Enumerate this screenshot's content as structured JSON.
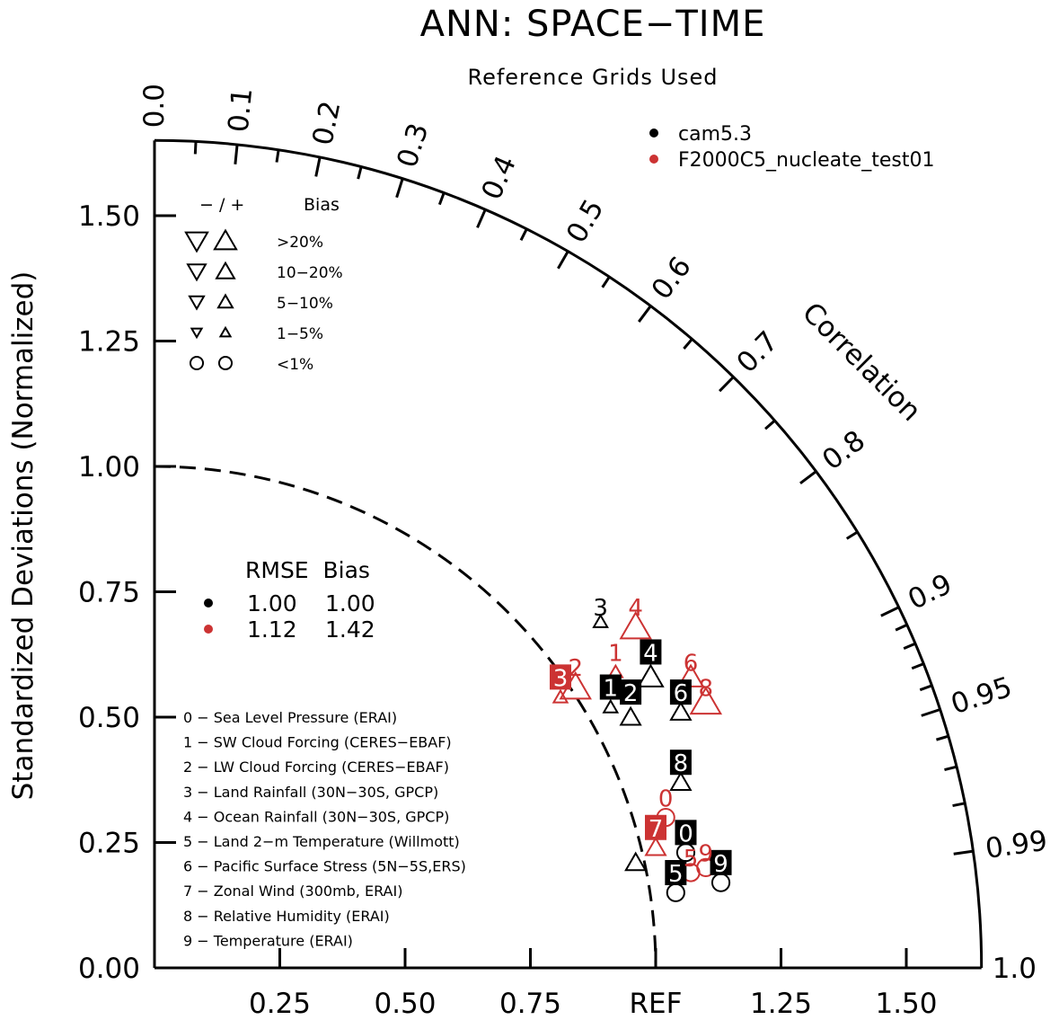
{
  "title": "ANN: SPACE−TIME",
  "subtitle": "Reference Grids Used",
  "ylabel": "Standardized Deviations (Normalized)",
  "corr_label": "Correlation",
  "colors": {
    "black": "#000000",
    "red": "#cc3333"
  },
  "legend_models": [
    {
      "name": "cam5.3",
      "color": "#000000"
    },
    {
      "name": "F2000C5_nucleate_test01",
      "color": "#cc3333"
    }
  ],
  "bias_legend": {
    "header_sign": "− / +",
    "header_bias": "Bias",
    "rows": [
      {
        "label": ">20%",
        "marker": "triangle",
        "size": 1.0
      },
      {
        "label": "10−20%",
        "marker": "triangle",
        "size": 0.82
      },
      {
        "label": "5−10%",
        "marker": "triangle",
        "size": 0.66
      },
      {
        "label": "1−5%",
        "marker": "triangle",
        "size": 0.46
      },
      {
        "label": "<1%",
        "marker": "circle",
        "size": 0.6
      }
    ]
  },
  "rmse_table": {
    "header": "RMSE  Bias",
    "rows": [
      {
        "color": "#000000",
        "rmse": "1.00",
        "bias": "1.00"
      },
      {
        "color": "#cc3333",
        "rmse": "1.12",
        "bias": "1.42"
      }
    ]
  },
  "variables": [
    "0 − Sea Level Pressure (ERAI)",
    "1 − SW Cloud Forcing (CERES−EBAF)",
    "2 − LW Cloud Forcing (CERES−EBAF)",
    "3 − Land Rainfall (30N−30S, GPCP)",
    "4 − Ocean Rainfall (30N−30S, GPCP)",
    "5 − Land 2−m Temperature (Willmott)",
    "6 − Pacific Surface Stress (5N−5S,ERS)",
    "7 − Zonal Wind (300mb, ERAI)",
    "8 − Relative Humidity (ERAI)",
    "9 − Temperature (ERAI)"
  ],
  "chart_data": {
    "type": "scatter",
    "subtype": "taylor-diagram",
    "std_max": 1.65,
    "std_ticks": [
      {
        "v": 0.0,
        "label": "0.00"
      },
      {
        "v": 0.25,
        "label": "0.25"
      },
      {
        "v": 0.5,
        "label": "0.50"
      },
      {
        "v": 0.75,
        "label": "0.75"
      },
      {
        "v": 1.0,
        "label": "1.00"
      },
      {
        "v": 1.25,
        "label": "1.25"
      },
      {
        "v": 1.5,
        "label": "1.50"
      }
    ],
    "x_ticks": [
      {
        "v": 0.25,
        "label": "0.25"
      },
      {
        "v": 0.5,
        "label": "0.50"
      },
      {
        "v": 0.75,
        "label": "0.75"
      },
      {
        "v": 1.0,
        "label": "REF"
      },
      {
        "v": 1.25,
        "label": "1.25"
      },
      {
        "v": 1.5,
        "label": "1.50"
      }
    ],
    "corr_labels": [
      {
        "v": 0.0,
        "label": "0.0"
      },
      {
        "v": 0.1,
        "label": "0.1"
      },
      {
        "v": 0.2,
        "label": "0.2"
      },
      {
        "v": 0.3,
        "label": "0.3"
      },
      {
        "v": 0.4,
        "label": "0.4"
      },
      {
        "v": 0.5,
        "label": "0.5"
      },
      {
        "v": 0.6,
        "label": "0.6"
      },
      {
        "v": 0.7,
        "label": "0.7"
      },
      {
        "v": 0.8,
        "label": "0.8"
      },
      {
        "v": 0.9,
        "label": "0.9"
      },
      {
        "v": 0.95,
        "label": "0.95"
      },
      {
        "v": 0.99,
        "label": "0.99"
      },
      {
        "v": 1.0,
        "label": "1.0"
      }
    ],
    "corr_minor_ticks": [
      0.05,
      0.15,
      0.25,
      0.35,
      0.45,
      0.55,
      0.65,
      0.75,
      0.85,
      0.91,
      0.92,
      0.93,
      0.94,
      0.96,
      0.97,
      0.98
    ],
    "reference_arc": 1.0,
    "series": [
      {
        "name": "cam5.3",
        "color": "#000000",
        "points": [
          {
            "id": "0",
            "x": 1.06,
            "y": 0.23,
            "marker": "circle",
            "size": 0.6
          },
          {
            "id": "1",
            "x": 0.91,
            "y": 0.52,
            "marker": "triangle",
            "size": 0.46
          },
          {
            "id": "2",
            "x": 0.95,
            "y": 0.5,
            "marker": "triangle",
            "size": 0.66
          },
          {
            "id": "3",
            "x": 0.89,
            "y": 0.69,
            "marker": "triangle",
            "size": 0.46
          },
          {
            "id": "4",
            "x": 0.99,
            "y": 0.58,
            "marker": "triangle",
            "size": 0.82
          },
          {
            "id": "5",
            "x": 1.04,
            "y": 0.15,
            "marker": "circle",
            "size": 0.6
          },
          {
            "id": "6",
            "x": 1.05,
            "y": 0.51,
            "marker": "triangle",
            "size": 0.66
          },
          {
            "id": "7",
            "x": 0.96,
            "y": 0.21,
            "marker": "triangle",
            "size": 0.66
          },
          {
            "id": "8",
            "x": 1.05,
            "y": 0.37,
            "marker": "triangle",
            "size": 0.66
          },
          {
            "id": "9",
            "x": 1.13,
            "y": 0.17,
            "marker": "circle",
            "size": 0.6
          }
        ]
      },
      {
        "name": "F2000C5_nucleate_test01",
        "color": "#cc3333",
        "points": [
          {
            "id": "0",
            "x": 1.02,
            "y": 0.3,
            "marker": "circle",
            "size": 0.6
          },
          {
            "id": "1",
            "x": 0.92,
            "y": 0.59,
            "marker": "triangle",
            "size": 0.46
          },
          {
            "id": "2",
            "x": 0.84,
            "y": 0.56,
            "marker": "triangle",
            "size": 1.0
          },
          {
            "id": "3",
            "x": 0.81,
            "y": 0.54,
            "marker": "triangle",
            "size": 0.46
          },
          {
            "id": "4",
            "x": 0.96,
            "y": 0.68,
            "marker": "triangle",
            "size": 1.0
          },
          {
            "id": "5",
            "x": 1.07,
            "y": 0.19,
            "marker": "circle",
            "size": 0.6
          },
          {
            "id": "6",
            "x": 1.07,
            "y": 0.58,
            "marker": "triangle",
            "size": 0.82
          },
          {
            "id": "7",
            "x": 1.0,
            "y": 0.24,
            "marker": "triangle",
            "size": 0.66
          },
          {
            "id": "8",
            "x": 1.1,
            "y": 0.53,
            "marker": "triangle",
            "size": 1.0
          },
          {
            "id": "9",
            "x": 1.1,
            "y": 0.2,
            "marker": "circle",
            "size": 0.6
          }
        ]
      }
    ],
    "point_labels": [
      {
        "series": 0,
        "id": "0",
        "x": 1.06,
        "y": 0.27,
        "boxed": true
      },
      {
        "series": 0,
        "id": "1",
        "x": 0.91,
        "y": 0.56,
        "boxed": true
      },
      {
        "series": 0,
        "id": "2",
        "x": 0.95,
        "y": 0.55,
        "boxed": true
      },
      {
        "series": 0,
        "id": "3",
        "x": 0.89,
        "y": 0.72,
        "boxed": false
      },
      {
        "series": 0,
        "id": "4",
        "x": 0.99,
        "y": 0.63,
        "boxed": true
      },
      {
        "series": 0,
        "id": "5",
        "x": 1.04,
        "y": 0.19,
        "boxed": true
      },
      {
        "series": 0,
        "id": "6",
        "x": 1.05,
        "y": 0.55,
        "boxed": true
      },
      {
        "series": 0,
        "id": "8",
        "x": 1.05,
        "y": 0.41,
        "boxed": true
      },
      {
        "series": 0,
        "id": "9",
        "x": 1.13,
        "y": 0.21,
        "boxed": true
      },
      {
        "series": 1,
        "id": "0",
        "x": 1.02,
        "y": 0.34,
        "boxed": false
      },
      {
        "series": 1,
        "id": "1",
        "x": 0.92,
        "y": 0.63,
        "boxed": false
      },
      {
        "series": 1,
        "id": "2",
        "x": 0.84,
        "y": 0.6,
        "boxed": false
      },
      {
        "series": 1,
        "id": "3",
        "x": 0.81,
        "y": 0.58,
        "boxed": true
      },
      {
        "series": 1,
        "id": "4",
        "x": 0.96,
        "y": 0.72,
        "boxed": false
      },
      {
        "series": 1,
        "id": "5",
        "x": 1.07,
        "y": 0.22,
        "boxed": false
      },
      {
        "series": 1,
        "id": "6",
        "x": 1.07,
        "y": 0.61,
        "boxed": false
      },
      {
        "series": 1,
        "id": "7",
        "x": 1.0,
        "y": 0.28,
        "boxed": true
      },
      {
        "series": 1,
        "id": "8",
        "x": 1.1,
        "y": 0.56,
        "boxed": false
      },
      {
        "series": 1,
        "id": "9",
        "x": 1.1,
        "y": 0.23,
        "boxed": false
      }
    ]
  }
}
